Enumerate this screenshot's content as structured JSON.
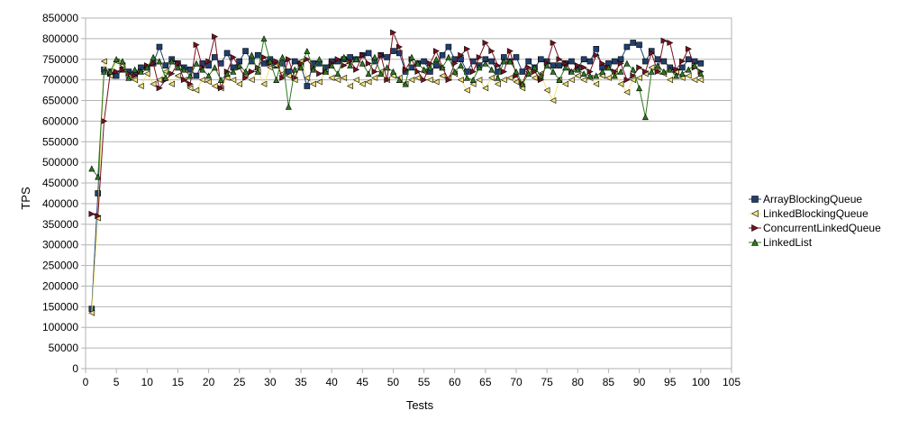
{
  "chart_data": {
    "type": "line",
    "title": "",
    "xlabel": "Tests",
    "ylabel": "TPS",
    "xlim": [
      0,
      105
    ],
    "ylim": [
      0,
      850000
    ],
    "x_ticks": [
      0,
      5,
      10,
      15,
      20,
      25,
      30,
      35,
      40,
      45,
      50,
      55,
      60,
      65,
      70,
      75,
      80,
      85,
      90,
      95,
      100,
      105
    ],
    "y_ticks": [
      0,
      50000,
      100000,
      150000,
      200000,
      250000,
      300000,
      350000,
      400000,
      450000,
      500000,
      550000,
      600000,
      650000,
      700000,
      750000,
      800000,
      850000
    ],
    "grid": "horizontal",
    "legend_position": "right",
    "x": [
      1,
      2,
      3,
      4,
      5,
      6,
      7,
      8,
      9,
      10,
      11,
      12,
      13,
      14,
      15,
      16,
      17,
      18,
      19,
      20,
      21,
      22,
      23,
      24,
      25,
      26,
      27,
      28,
      29,
      30,
      31,
      32,
      33,
      34,
      35,
      36,
      37,
      38,
      39,
      40,
      41,
      42,
      43,
      44,
      45,
      46,
      47,
      48,
      49,
      50,
      51,
      52,
      53,
      54,
      55,
      56,
      57,
      58,
      59,
      60,
      61,
      62,
      63,
      64,
      65,
      66,
      67,
      68,
      69,
      70,
      71,
      72,
      73,
      74,
      75,
      76,
      77,
      78,
      79,
      80,
      81,
      82,
      83,
      84,
      85,
      86,
      87,
      88,
      89,
      90,
      91,
      92,
      93,
      94,
      95,
      96,
      97,
      98,
      99,
      100
    ],
    "series": [
      {
        "name": "ArrayBlockingQueue",
        "color": "#1f3f6e",
        "marker": "square",
        "values": [
          145000,
          425000,
          725000,
          720000,
          710000,
          725000,
          720000,
          715000,
          730000,
          730000,
          740000,
          780000,
          735000,
          750000,
          740000,
          730000,
          725000,
          710000,
          740000,
          735000,
          755000,
          740000,
          765000,
          730000,
          745000,
          770000,
          745000,
          760000,
          740000,
          750000,
          735000,
          740000,
          720000,
          745000,
          735000,
          685000,
          740000,
          740000,
          730000,
          745000,
          745000,
          750000,
          755000,
          750000,
          760000,
          765000,
          745000,
          760000,
          755000,
          770000,
          765000,
          720000,
          730000,
          740000,
          745000,
          720000,
          735000,
          760000,
          780000,
          750000,
          750000,
          720000,
          745000,
          735000,
          750000,
          745000,
          720000,
          755000,
          745000,
          755000,
          720000,
          745000,
          730000,
          750000,
          745000,
          735000,
          735000,
          740000,
          745000,
          730000,
          750000,
          745000,
          775000,
          730000,
          740000,
          745000,
          750000,
          780000,
          790000,
          785000,
          745000,
          770000,
          750000,
          745000,
          730000,
          720000,
          730000,
          750000,
          745000,
          740000
        ]
      },
      {
        "name": "LinkedBlockingQueue",
        "color": "#f2e27a",
        "marker": "triangle-left",
        "values": [
          135000,
          365000,
          745000,
          710000,
          745000,
          735000,
          705000,
          700000,
          685000,
          715000,
          690000,
          700000,
          720000,
          690000,
          710000,
          700000,
          680000,
          675000,
          700000,
          695000,
          685000,
          680000,
          705000,
          700000,
          690000,
          715000,
          700000,
          720000,
          690000,
          730000,
          735000,
          715000,
          710000,
          700000,
          745000,
          705000,
          690000,
          695000,
          720000,
          705000,
          700000,
          705000,
          685000,
          700000,
          690000,
          695000,
          705000,
          720000,
          700000,
          710000,
          705000,
          690000,
          700000,
          705000,
          720000,
          700000,
          695000,
          710000,
          705000,
          715000,
          700000,
          675000,
          690000,
          700000,
          680000,
          705000,
          690000,
          700000,
          705000,
          695000,
          680000,
          720000,
          705000,
          715000,
          675000,
          650000,
          700000,
          690000,
          700000,
          710000,
          700000,
          705000,
          690000,
          710000,
          705000,
          720000,
          690000,
          670000,
          700000,
          705000,
          715000,
          730000,
          720000,
          715000,
          700000,
          720000,
          705000,
          710000,
          700000,
          700000
        ]
      },
      {
        "name": "ConcurrentLinkedQueue",
        "color": "#7a1020",
        "marker": "triangle-right",
        "values": [
          375000,
          370000,
          600000,
          715000,
          720000,
          725000,
          715000,
          710000,
          720000,
          735000,
          740000,
          680000,
          700000,
          715000,
          740000,
          700000,
          690000,
          785000,
          730000,
          745000,
          805000,
          680000,
          720000,
          755000,
          730000,
          705000,
          720000,
          730000,
          755000,
          740000,
          745000,
          705000,
          750000,
          705000,
          740000,
          750000,
          730000,
          715000,
          720000,
          740000,
          750000,
          735000,
          745000,
          725000,
          760000,
          740000,
          720000,
          760000,
          700000,
          815000,
          780000,
          725000,
          750000,
          720000,
          700000,
          740000,
          770000,
          730000,
          700000,
          740000,
          760000,
          775000,
          720000,
          755000,
          790000,
          770000,
          735000,
          720000,
          770000,
          710000,
          690000,
          730000,
          720000,
          700000,
          740000,
          790000,
          750000,
          740000,
          720000,
          735000,
          730000,
          720000,
          760000,
          740000,
          730000,
          720000,
          740000,
          700000,
          710000,
          730000,
          720000,
          765000,
          720000,
          795000,
          790000,
          725000,
          745000,
          775000,
          730000,
          720000
        ]
      },
      {
        "name": "LinkedList",
        "color": "#2d7a1f",
        "marker": "triangle-up",
        "values": [
          485000,
          465000,
          720000,
          720000,
          750000,
          745000,
          705000,
          725000,
          720000,
          730000,
          755000,
          745000,
          705000,
          745000,
          730000,
          725000,
          710000,
          740000,
          725000,
          710000,
          730000,
          700000,
          715000,
          720000,
          735000,
          720000,
          760000,
          720000,
          800000,
          745000,
          700000,
          755000,
          635000,
          725000,
          730000,
          770000,
          725000,
          750000,
          720000,
          735000,
          715000,
          755000,
          735000,
          750000,
          740000,
          715000,
          755000,
          715000,
          730000,
          720000,
          700000,
          690000,
          755000,
          740000,
          725000,
          730000,
          750000,
          730000,
          755000,
          720000,
          735000,
          705000,
          700000,
          730000,
          740000,
          725000,
          705000,
          745000,
          745000,
          720000,
          690000,
          715000,
          730000,
          710000,
          735000,
          720000,
          700000,
          730000,
          720000,
          725000,
          715000,
          710000,
          710000,
          720000,
          730000,
          710000,
          720000,
          740000,
          725000,
          680000,
          610000,
          720000,
          735000,
          720000,
          725000,
          710000,
          715000,
          725000,
          735000,
          715000
        ]
      }
    ]
  }
}
